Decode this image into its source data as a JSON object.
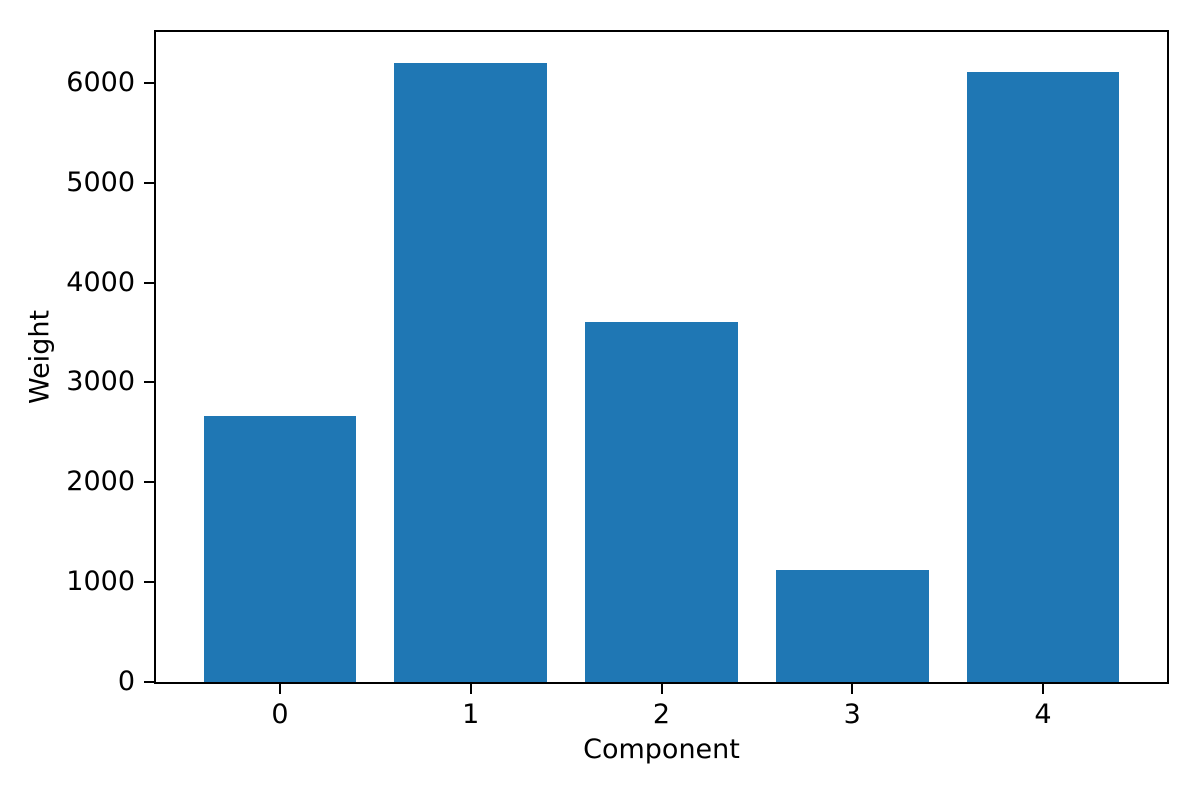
{
  "figure": {
    "background": "#ffffff"
  },
  "chart_data": {
    "type": "bar",
    "categories": [
      "0",
      "1",
      "2",
      "3",
      "4"
    ],
    "values": [
      2660,
      6200,
      3610,
      1120,
      6110
    ],
    "title": "",
    "xlabel": "Component",
    "ylabel": "Weight",
    "xlim": [
      -0.65,
      4.65
    ],
    "ylim": [
      0,
      6510
    ],
    "yticks": [
      0,
      1000,
      2000,
      3000,
      4000,
      5000,
      6000
    ],
    "ytick_labels": [
      "0",
      "1000",
      "2000",
      "3000",
      "4000",
      "5000",
      "6000"
    ],
    "bar_width": 0.8,
    "bar_color": "#1f77b4",
    "axis_color": "#000000",
    "text_color": "#000000",
    "grid": false,
    "legend": null
  }
}
